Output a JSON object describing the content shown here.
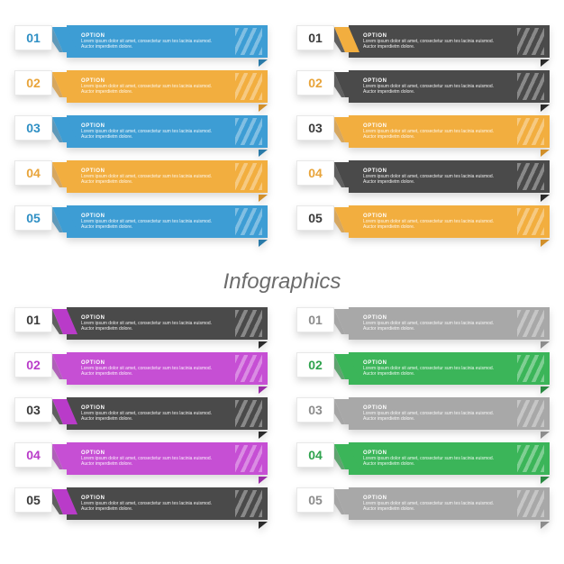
{
  "title": "Infographics",
  "option_label": "OPTION",
  "option_desc": "Lorem ipsum dolor sit amet, consectetur sum tes lacinia euismod. Auctor imperdietm dolore.",
  "numbers": [
    "01",
    "02",
    "03",
    "04",
    "05"
  ],
  "number_fontsize": 14,
  "title_fontsize": 24,
  "label_fontsize": 6,
  "desc_fontsize": 5,
  "banner_height": 36,
  "background_color": "#ffffff",
  "quadrants": [
    {
      "id": "top-left",
      "banners": [
        {
          "num_color": "#2e8fc4",
          "bar_color": "#3d9dd4",
          "bar_dark": "#2a7aa8",
          "connector": "#3d9dd4"
        },
        {
          "num_color": "#e8a43a",
          "bar_color": "#f2ae3f",
          "bar_dark": "#d18f2a",
          "connector": "#f2ae3f"
        },
        {
          "num_color": "#2e8fc4",
          "bar_color": "#3d9dd4",
          "bar_dark": "#2a7aa8",
          "connector": "#3d9dd4"
        },
        {
          "num_color": "#e8a43a",
          "bar_color": "#f2ae3f",
          "bar_dark": "#d18f2a",
          "connector": "#f2ae3f"
        },
        {
          "num_color": "#2e8fc4",
          "bar_color": "#3d9dd4",
          "bar_dark": "#2a7aa8",
          "connector": "#3d9dd4"
        }
      ]
    },
    {
      "id": "top-right",
      "banners": [
        {
          "num_color": "#3a3a3a",
          "bar_color": "#4a4a4a",
          "bar_dark": "#2a2a2a",
          "connector": "#f2ae3f"
        },
        {
          "num_color": "#e8a43a",
          "bar_color": "#4a4a4a",
          "bar_dark": "#2a2a2a",
          "connector": "#4a4a4a"
        },
        {
          "num_color": "#3a3a3a",
          "bar_color": "#f2ae3f",
          "bar_dark": "#d18f2a",
          "connector": "#f2ae3f"
        },
        {
          "num_color": "#e8a43a",
          "bar_color": "#4a4a4a",
          "bar_dark": "#2a2a2a",
          "connector": "#4a4a4a"
        },
        {
          "num_color": "#3a3a3a",
          "bar_color": "#f2ae3f",
          "bar_dark": "#d18f2a",
          "connector": "#f2ae3f"
        }
      ]
    },
    {
      "id": "bottom-left",
      "banners": [
        {
          "num_color": "#3a3a3a",
          "bar_color": "#4a4a4a",
          "bar_dark": "#2a2a2a",
          "connector": "#b93bc9"
        },
        {
          "num_color": "#b93bc9",
          "bar_color": "#c64fd4",
          "bar_dark": "#9a2ba7",
          "connector": "#c64fd4"
        },
        {
          "num_color": "#3a3a3a",
          "bar_color": "#4a4a4a",
          "bar_dark": "#2a2a2a",
          "connector": "#b93bc9"
        },
        {
          "num_color": "#b93bc9",
          "bar_color": "#c64fd4",
          "bar_dark": "#9a2ba7",
          "connector": "#c64fd4"
        },
        {
          "num_color": "#3a3a3a",
          "bar_color": "#4a4a4a",
          "bar_dark": "#2a2a2a",
          "connector": "#b93bc9"
        }
      ]
    },
    {
      "id": "bottom-right",
      "banners": [
        {
          "num_color": "#8c8c8c",
          "bar_color": "#a8a8a8",
          "bar_dark": "#8c8c8c",
          "connector": "#a8a8a8"
        },
        {
          "num_color": "#2fa34e",
          "bar_color": "#3bb559",
          "bar_dark": "#2a8a42",
          "connector": "#3bb559"
        },
        {
          "num_color": "#8c8c8c",
          "bar_color": "#a8a8a8",
          "bar_dark": "#8c8c8c",
          "connector": "#a8a8a8"
        },
        {
          "num_color": "#2fa34e",
          "bar_color": "#3bb559",
          "bar_dark": "#2a8a42",
          "connector": "#3bb559"
        },
        {
          "num_color": "#8c8c8c",
          "bar_color": "#a8a8a8",
          "bar_dark": "#8c8c8c",
          "connector": "#a8a8a8"
        }
      ]
    }
  ]
}
